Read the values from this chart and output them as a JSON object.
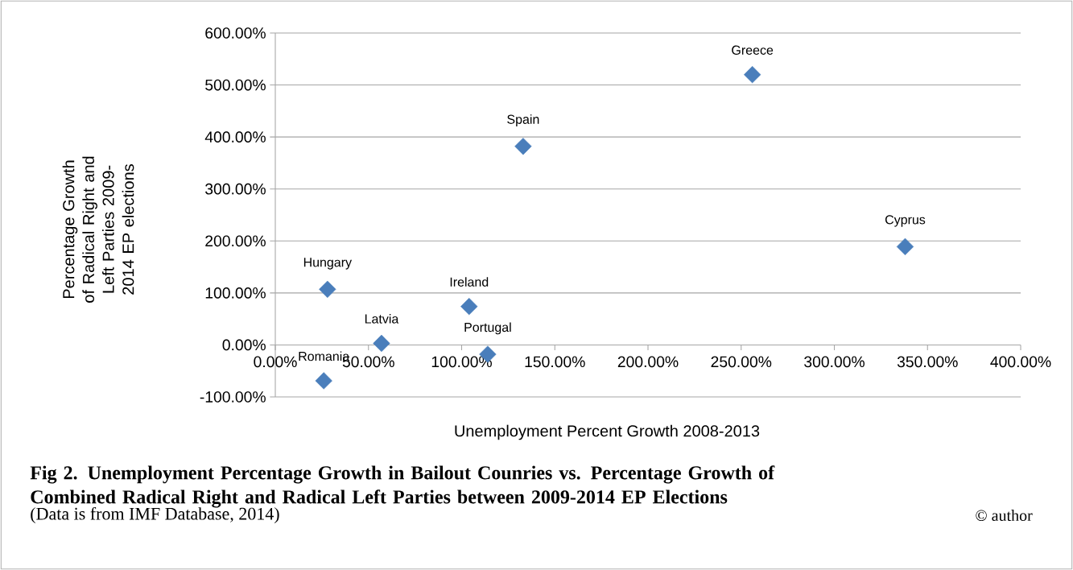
{
  "chart_data": {
    "type": "scatter",
    "title": "Fig 2. Unemployment Percentage Growth in Bailout Counries vs. Percentage Growth of Combined Radical Right and Radical Left Parties between 2009-2014 EP Elections",
    "xlabel": "Unemployment Percent Growth 2008-2013",
    "ylabel": "Percentage Growth of Radical Right and Left Parties 2009-2014 EP elections",
    "x": [
      256,
      133,
      338,
      28,
      104,
      57,
      114,
      26
    ],
    "values": [
      520,
      382,
      189,
      107,
      74,
      3,
      -18,
      -69
    ],
    "color": "#4a7ebb",
    "marker": "diamond",
    "grid": "y",
    "xlim": [
      0,
      400
    ],
    "ylim": [
      -100,
      600
    ],
    "xticks": [
      {
        "value": 0,
        "label": "0.00%"
      },
      {
        "value": 50,
        "label": "50.00%"
      },
      {
        "value": 100,
        "label": "100.00%"
      },
      {
        "value": 150,
        "label": "150.00%"
      },
      {
        "value": 200,
        "label": "200.00%"
      },
      {
        "value": 250,
        "label": "250.00%"
      },
      {
        "value": 300,
        "label": "300.00%"
      },
      {
        "value": 350,
        "label": "350.00%"
      },
      {
        "value": 400,
        "label": "400.00%"
      }
    ],
    "yticks": [
      {
        "value": -100,
        "label": "-100.00%"
      },
      {
        "value": 0,
        "label": "0.00%"
      },
      {
        "value": 100,
        "label": "100.00%"
      },
      {
        "value": 200,
        "label": "200.00%"
      },
      {
        "value": 300,
        "label": "300.00%"
      },
      {
        "value": 400,
        "label": "400.00%"
      },
      {
        "value": 500,
        "label": "500.00%"
      },
      {
        "value": 600,
        "label": "600.00%"
      }
    ],
    "annotations": [
      {
        "text": "Greece",
        "x": 256,
        "y": 520
      },
      {
        "text": "Spain",
        "x": 133,
        "y": 382
      },
      {
        "text": "Cyprus",
        "x": 338,
        "y": 189
      },
      {
        "text": "Hungary",
        "x": 28,
        "y": 107
      },
      {
        "text": "Ireland",
        "x": 104,
        "y": 74
      },
      {
        "text": "Latvia",
        "x": 57,
        "y": 3
      },
      {
        "text": "Portugal",
        "x": 114,
        "y": -18
      },
      {
        "text": "Romania",
        "x": 26,
        "y": -69
      },
      "(Data is from IMF Database, 2014)",
      "© author"
    ]
  }
}
